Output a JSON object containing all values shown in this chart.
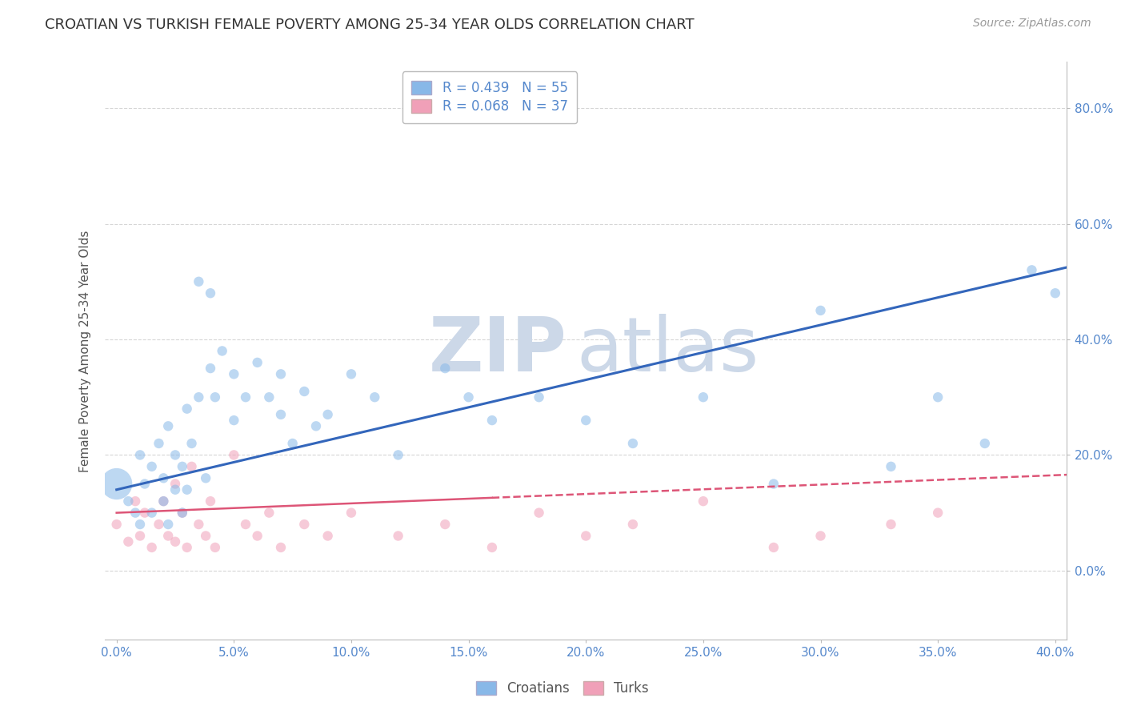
{
  "title": "CROATIAN VS TURKISH FEMALE POVERTY AMONG 25-34 YEAR OLDS CORRELATION CHART",
  "source": "Source: ZipAtlas.com",
  "ylabel_label": "Female Poverty Among 25-34 Year Olds",
  "legend_entries": [
    {
      "label": "R = 0.439   N = 55",
      "color": "#aac8f0"
    },
    {
      "label": "R = 0.068   N = 37",
      "color": "#f0a8b8"
    }
  ],
  "croatian_color": "#88b8e8",
  "turkish_color": "#f0a0b8",
  "croatian_line_color": "#3366bb",
  "turkish_line_color": "#dd5577",
  "background_color": "#ffffff",
  "grid_color": "#cccccc",
  "watermark_zip": "ZIP",
  "watermark_atlas": "atlas",
  "watermark_color": "#ccd8e8",
  "title_fontsize": 13,
  "axis_label_fontsize": 11,
  "tick_fontsize": 11,
  "legend_fontsize": 12,
  "source_fontsize": 10,
  "xlim": [
    -0.005,
    0.405
  ],
  "ylim": [
    -0.12,
    0.88
  ],
  "croatian_x": [
    0.0,
    0.005,
    0.008,
    0.01,
    0.01,
    0.012,
    0.015,
    0.015,
    0.018,
    0.02,
    0.02,
    0.022,
    0.022,
    0.025,
    0.025,
    0.028,
    0.028,
    0.03,
    0.03,
    0.032,
    0.035,
    0.035,
    0.038,
    0.04,
    0.04,
    0.042,
    0.045,
    0.05,
    0.05,
    0.055,
    0.06,
    0.065,
    0.07,
    0.07,
    0.075,
    0.08,
    0.085,
    0.09,
    0.1,
    0.11,
    0.12,
    0.14,
    0.15,
    0.16,
    0.18,
    0.2,
    0.22,
    0.25,
    0.28,
    0.3,
    0.33,
    0.35,
    0.37,
    0.39,
    0.4
  ],
  "croatian_y": [
    0.15,
    0.12,
    0.1,
    0.2,
    0.08,
    0.15,
    0.18,
    0.1,
    0.22,
    0.16,
    0.12,
    0.25,
    0.08,
    0.2,
    0.14,
    0.18,
    0.1,
    0.28,
    0.14,
    0.22,
    0.5,
    0.3,
    0.16,
    0.48,
    0.35,
    0.3,
    0.38,
    0.34,
    0.26,
    0.3,
    0.36,
    0.3,
    0.34,
    0.27,
    0.22,
    0.31,
    0.25,
    0.27,
    0.34,
    0.3,
    0.2,
    0.35,
    0.3,
    0.26,
    0.3,
    0.26,
    0.22,
    0.3,
    0.15,
    0.45,
    0.18,
    0.3,
    0.22,
    0.52,
    0.48
  ],
  "croatian_sizes": [
    800,
    80,
    80,
    80,
    80,
    80,
    80,
    80,
    80,
    80,
    80,
    80,
    80,
    80,
    80,
    80,
    80,
    80,
    80,
    80,
    80,
    80,
    80,
    80,
    80,
    80,
    80,
    80,
    80,
    80,
    80,
    80,
    80,
    80,
    80,
    80,
    80,
    80,
    80,
    80,
    80,
    80,
    80,
    80,
    80,
    80,
    80,
    80,
    80,
    80,
    80,
    80,
    80,
    80,
    80
  ],
  "turkish_x": [
    0.0,
    0.005,
    0.008,
    0.01,
    0.012,
    0.015,
    0.018,
    0.02,
    0.022,
    0.025,
    0.025,
    0.028,
    0.03,
    0.032,
    0.035,
    0.038,
    0.04,
    0.042,
    0.05,
    0.055,
    0.06,
    0.065,
    0.07,
    0.08,
    0.09,
    0.1,
    0.12,
    0.14,
    0.16,
    0.18,
    0.2,
    0.22,
    0.25,
    0.28,
    0.3,
    0.33,
    0.35
  ],
  "turkish_y": [
    0.08,
    0.05,
    0.12,
    0.06,
    0.1,
    0.04,
    0.08,
    0.12,
    0.06,
    0.15,
    0.05,
    0.1,
    0.04,
    0.18,
    0.08,
    0.06,
    0.12,
    0.04,
    0.2,
    0.08,
    0.06,
    0.1,
    0.04,
    0.08,
    0.06,
    0.1,
    0.06,
    0.08,
    0.04,
    0.1,
    0.06,
    0.08,
    0.12,
    0.04,
    0.06,
    0.08,
    0.1
  ],
  "turkish_sizes": [
    80,
    80,
    80,
    80,
    80,
    80,
    80,
    80,
    80,
    80,
    80,
    80,
    80,
    80,
    80,
    80,
    80,
    80,
    80,
    80,
    80,
    80,
    80,
    80,
    80,
    80,
    80,
    80,
    80,
    80,
    80,
    80,
    80,
    80,
    80,
    80,
    80
  ],
  "cro_line_x0": 0.0,
  "cro_line_y0": 0.14,
  "cro_line_x1": 0.4,
  "cro_line_y1": 0.52,
  "tur_line_x0": 0.0,
  "tur_line_y0": 0.1,
  "tur_line_x1": 0.4,
  "tur_line_y1": 0.165
}
